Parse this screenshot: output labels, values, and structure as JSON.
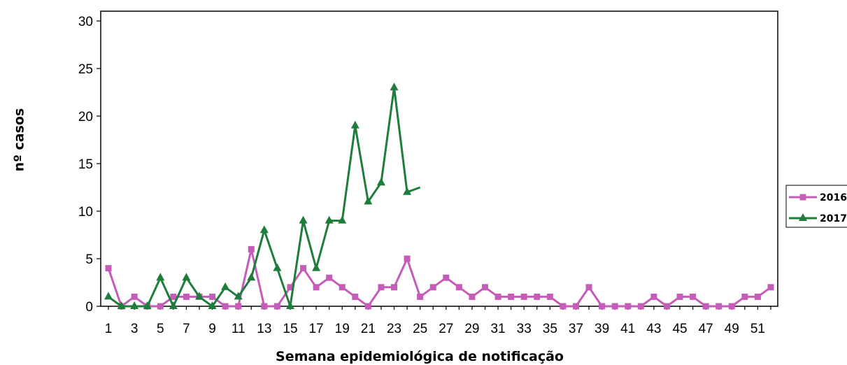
{
  "chart_data": {
    "type": "line",
    "xlabel": "Semana epidemiológica de notificação",
    "ylabel": "nº casos",
    "ylim": [
      0,
      30
    ],
    "yticks": [
      0,
      5,
      10,
      15,
      20,
      25,
      30
    ],
    "xlim": [
      1,
      52
    ],
    "xticks": [
      1,
      3,
      5,
      7,
      9,
      11,
      13,
      15,
      17,
      19,
      21,
      23,
      25,
      27,
      29,
      31,
      33,
      35,
      37,
      39,
      41,
      43,
      45,
      47,
      49,
      51
    ],
    "grid": false,
    "legend": "right",
    "series": [
      {
        "name": "2016",
        "color": "#c45cb8",
        "marker": "square",
        "x": [
          1,
          2,
          3,
          4,
          5,
          6,
          7,
          8,
          9,
          10,
          11,
          12,
          13,
          14,
          15,
          16,
          17,
          18,
          19,
          20,
          21,
          22,
          23,
          24,
          25,
          26,
          27,
          28,
          29,
          30,
          31,
          32,
          33,
          34,
          35,
          36,
          37,
          38,
          39,
          40,
          41,
          42,
          43,
          44,
          45,
          46,
          47,
          48,
          49,
          50,
          51,
          52
        ],
        "values": [
          4,
          0,
          1,
          0,
          0,
          1,
          1,
          1,
          1,
          0,
          0,
          6,
          0,
          0,
          2,
          4,
          2,
          3,
          2,
          1,
          0,
          2,
          2,
          5,
          1,
          2,
          3,
          2,
          1,
          2,
          1,
          1,
          1,
          1,
          1,
          0,
          0,
          2,
          0,
          0,
          0,
          0,
          1,
          0,
          1,
          1,
          0,
          0,
          0,
          1,
          1,
          2
        ]
      },
      {
        "name": "2017",
        "color": "#1e7d3a",
        "marker": "triangle",
        "x": [
          1,
          2,
          3,
          4,
          5,
          6,
          7,
          8,
          9,
          10,
          11,
          12,
          13,
          14,
          15,
          16,
          17,
          18,
          19,
          20,
          21,
          22,
          23,
          24,
          25
        ],
        "values": [
          1,
          0,
          0,
          0,
          3,
          0,
          3,
          1,
          0,
          2,
          1,
          3,
          8,
          4,
          0,
          9,
          4,
          9,
          9,
          19,
          11,
          13,
          23,
          12,
          12.5
        ],
        "marker_count": 24
      }
    ]
  }
}
